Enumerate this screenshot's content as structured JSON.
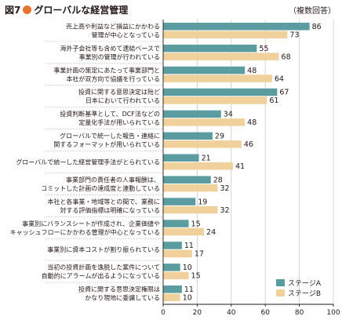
{
  "header": {
    "fig_number": "図7",
    "title": "グローバルな経営管理",
    "note": "（複数回答）"
  },
  "colors": {
    "series_a": "#5a9ca0",
    "series_b": "#f0d19c",
    "dot": "#e8742e"
  },
  "chart_data": {
    "type": "bar",
    "orientation": "horizontal",
    "title": "グローバルな経営管理",
    "xlim": [
      0,
      100
    ],
    "xticks": [
      0,
      20,
      40,
      60,
      80,
      100
    ],
    "grid": true,
    "legend": "bottom-right",
    "categories": [
      [
        "売上高や利益など損益にかかわる",
        "管理が中心となっている"
      ],
      [
        "海外子会社等も含めて連結ベースで",
        "事業別の管理が行われている"
      ],
      [
        "事業計画の策定にあたって事業部門と",
        "本社が双方向で協議を行っている"
      ],
      [
        "投資に関する意思決定は殆ど",
        "日本において行われている"
      ],
      [
        "投資判断基準として、DCF法などの",
        "定量化手法が用いられている"
      ],
      [
        "グローバルで統一した報告・連絡に",
        "関するフォーマットが用いられている"
      ],
      [
        "グローバルで統一した経営管理手法がとられている"
      ],
      [
        "事業部門の責任者の人事報酬は、",
        "コミットした計画の達成度と連動している"
      ],
      [
        "本社と各事業・地域等との間で、業務に",
        "対する評価指標は明確になっている"
      ],
      [
        "事業別にバランスシートが作成され、企業価値や",
        "キャッシュフローにかかわる管理が中心となっている"
      ],
      [
        "事業別に資本コストが割り振られている"
      ],
      [
        "当初の投資計画を逸脱した案件について",
        "自動的にアラームが出るようになっている"
      ],
      [
        "投資に関する意思決定権限は",
        "かなり現地に委譲している"
      ]
    ],
    "series": [
      {
        "name": "ステージA",
        "values": [
          86,
          55,
          48,
          67,
          34,
          29,
          21,
          28,
          19,
          15,
          11,
          10,
          11
        ]
      },
      {
        "name": "ステージB",
        "values": [
          73,
          68,
          64,
          61,
          48,
          46,
          41,
          32,
          32,
          24,
          17,
          15,
          10
        ]
      }
    ]
  }
}
